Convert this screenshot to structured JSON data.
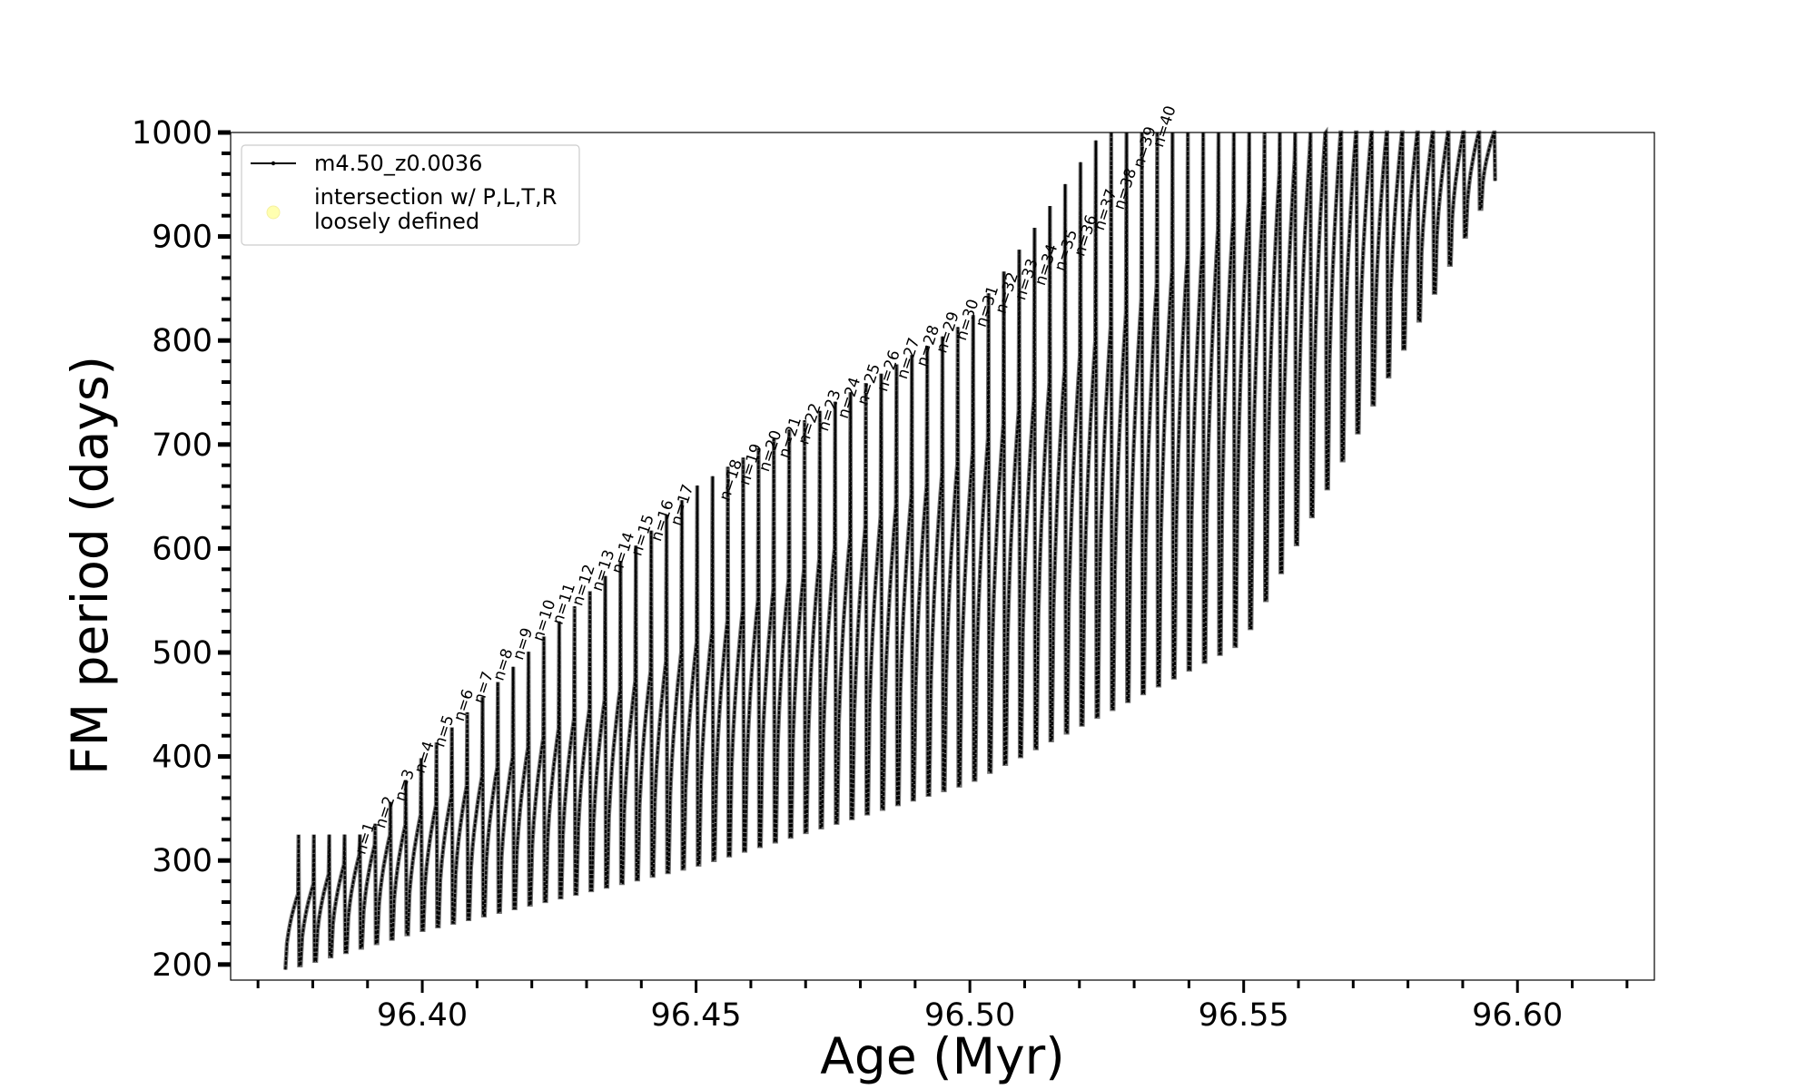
{
  "chart_data": {
    "type": "line",
    "title": "",
    "xlabel": "Age (Myr)",
    "ylabel": "FM period (days)",
    "xlim": [
      96.365,
      96.625
    ],
    "ylim": [
      185,
      1000
    ],
    "xticks": [
      96.4,
      96.45,
      96.5,
      96.55,
      96.6
    ],
    "xtick_labels": [
      "96.40",
      "96.45",
      "96.50",
      "96.55",
      "96.60"
    ],
    "yticks": [
      200,
      300,
      400,
      500,
      600,
      700,
      800,
      900,
      1000
    ],
    "ytick_labels": [
      "200",
      "300",
      "400",
      "500",
      "600",
      "700",
      "800",
      "900",
      "1000"
    ],
    "grid": false,
    "legend": {
      "placement": "upper-left",
      "entries": [
        {
          "label": "m4.50_z0.0036",
          "style": "black line with small dot markers"
        },
        {
          "label_lines": [
            "intersection w/ P,L,T,R",
            "loosely defined"
          ],
          "style": "pale yellow filled circle",
          "color": "#ffffb0"
        }
      ]
    },
    "series": [
      {
        "name": "m4.50_z0.0036",
        "color": "#000000",
        "description": "Sawtooth FM period during thermal pulses; each pulse cycle rises along an upper envelope, spikes to a peak, then drops to a lower envelope",
        "start_age": 96.375,
        "end_age": 96.596,
        "upper_envelope": {
          "x": [
            96.375,
            96.4,
            96.45,
            96.5,
            96.55,
            96.565
          ],
          "y": [
            260,
            345,
            510,
            690,
            930,
            1000
          ]
        },
        "lower_envelope": {
          "x": [
            96.375,
            96.4,
            96.45,
            96.5,
            96.55,
            96.6
          ],
          "y": [
            195,
            233,
            295,
            375,
            510,
            990
          ]
        },
        "peak_envelope": {
          "x": [
            96.39,
            96.4,
            96.45,
            96.5,
            96.52
          ],
          "y": [
            325,
            400,
            660,
            820,
            970
          ]
        }
      }
    ],
    "annotations": [
      {
        "text": "n=1",
        "x": 96.3895,
        "y": 305
      },
      {
        "text": "n=2",
        "x": 96.3931,
        "y": 330
      },
      {
        "text": "n=3",
        "x": 96.3967,
        "y": 356
      },
      {
        "text": "n=4",
        "x": 96.4003,
        "y": 383
      },
      {
        "text": "n=5",
        "x": 96.4039,
        "y": 408
      },
      {
        "text": "n=6",
        "x": 96.4075,
        "y": 433
      },
      {
        "text": "n=7",
        "x": 96.4111,
        "y": 450
      },
      {
        "text": "n=8",
        "x": 96.4147,
        "y": 472
      },
      {
        "text": "n=9",
        "x": 96.4183,
        "y": 492
      },
      {
        "text": "n=10",
        "x": 96.4219,
        "y": 510
      },
      {
        "text": "n=11",
        "x": 96.4255,
        "y": 526
      },
      {
        "text": "n=12",
        "x": 96.4291,
        "y": 544
      },
      {
        "text": "n=13",
        "x": 96.4327,
        "y": 558
      },
      {
        "text": "n=14",
        "x": 96.4363,
        "y": 575
      },
      {
        "text": "n=15",
        "x": 96.4399,
        "y": 592
      },
      {
        "text": "n=16",
        "x": 96.4435,
        "y": 606
      },
      {
        "text": "n=17",
        "x": 96.4471,
        "y": 621
      },
      {
        "text": "n=18",
        "x": 96.456,
        "y": 645
      },
      {
        "text": "n=19",
        "x": 96.4596,
        "y": 660
      },
      {
        "text": "n=20",
        "x": 96.4632,
        "y": 673
      },
      {
        "text": "n=21",
        "x": 96.4668,
        "y": 686
      },
      {
        "text": "n=22",
        "x": 96.4704,
        "y": 699
      },
      {
        "text": "n=23",
        "x": 96.474,
        "y": 712
      },
      {
        "text": "n=24",
        "x": 96.4776,
        "y": 724
      },
      {
        "text": "n=25",
        "x": 96.4812,
        "y": 737
      },
      {
        "text": "n=26",
        "x": 96.4848,
        "y": 750
      },
      {
        "text": "n=27",
        "x": 96.4884,
        "y": 762
      },
      {
        "text": "n=28",
        "x": 96.492,
        "y": 774
      },
      {
        "text": "n=29",
        "x": 96.4956,
        "y": 787
      },
      {
        "text": "n=30",
        "x": 96.4992,
        "y": 799
      },
      {
        "text": "n=31",
        "x": 96.5028,
        "y": 812
      },
      {
        "text": "n=32",
        "x": 96.5064,
        "y": 825
      },
      {
        "text": "n=33",
        "x": 96.51,
        "y": 838
      },
      {
        "text": "n=34",
        "x": 96.5136,
        "y": 852
      },
      {
        "text": "n=35",
        "x": 96.5172,
        "y": 866
      },
      {
        "text": "n=36",
        "x": 96.5208,
        "y": 880
      },
      {
        "text": "n=37",
        "x": 96.5244,
        "y": 905
      },
      {
        "text": "n=38",
        "x": 96.528,
        "y": 925
      },
      {
        "text": "n=39",
        "x": 96.5316,
        "y": 965
      },
      {
        "text": "n=40",
        "x": 96.5352,
        "y": 985
      }
    ]
  }
}
